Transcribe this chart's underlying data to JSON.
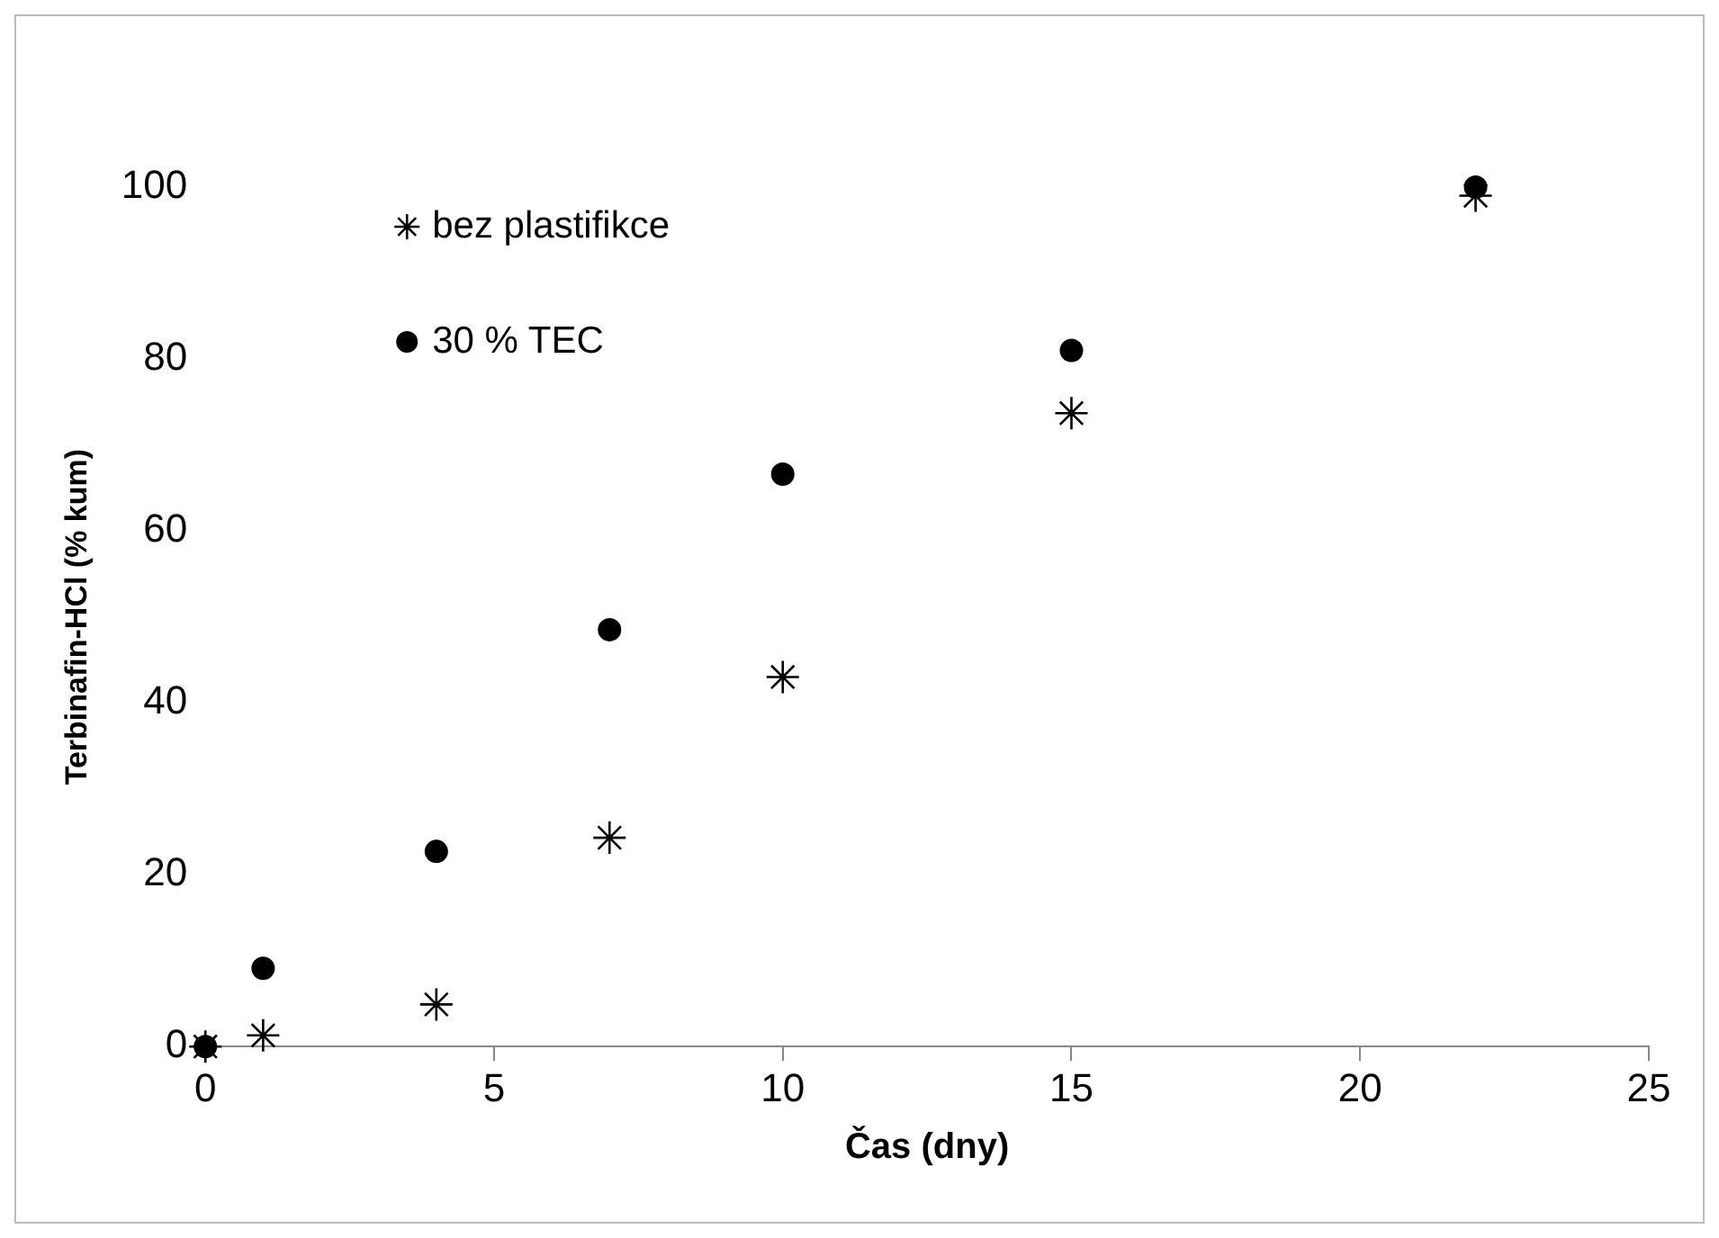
{
  "chart_data": {
    "type": "scatter",
    "xlabel": "Čas (dny)",
    "ylabel": "Terbinafin-HCl (% kum)",
    "xlim": [
      0,
      25
    ],
    "xticks": [
      0,
      5,
      10,
      15,
      20,
      25
    ],
    "ylim": [
      0,
      100
    ],
    "yticks": [
      0,
      20,
      40,
      60,
      80,
      100
    ],
    "grid": false,
    "legend": "top left",
    "series": [
      {
        "name": "bez plastifikce",
        "color": "#000000",
        "marker": "cross",
        "x": [
          0,
          1,
          4,
          7,
          10,
          15,
          22
        ],
        "values": [
          0,
          1.3,
          4.9,
          24.3,
          43,
          73.7,
          99
        ]
      },
      {
        "name": "30 % TEC",
        "color": "#000000",
        "marker": "circle",
        "x": [
          0,
          1,
          4,
          7,
          10,
          15,
          22
        ],
        "values": [
          0,
          9.1,
          22.7,
          48.5,
          66.6,
          81,
          100
        ]
      }
    ]
  }
}
